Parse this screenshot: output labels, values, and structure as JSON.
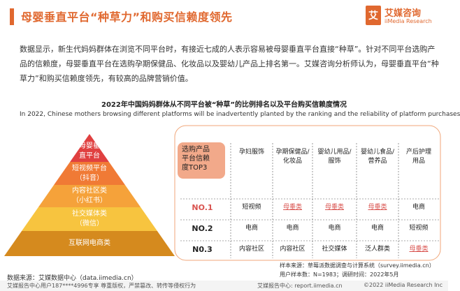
{
  "header": {
    "title": "母婴垂直平台“种草力”和购买信赖度领先",
    "logo_mark": "艾",
    "logo_cn": "艾媒咨询",
    "logo_en": "iiMedia Research",
    "accent_color": "#e0682f"
  },
  "intro": {
    "text": "数据显示，新生代妈妈群体在浏览不同平台时，有接近七成的人表示容易被母婴垂直平台直接“种草”。针对不同平台选购产品的信赖度，母婴垂直平台在选购孕期保健品、化妆品以及婴幼儿产品上排名第一。艾媒咨询分析师认为，母婴垂直平台“种草力”和购买信赖度领先，有较高的品牌营销价值。"
  },
  "chart_data": {
    "type": "table",
    "title": "2022年中国妈妈群体从不同平台被“种草”的比例排名以及平台购买信赖度情况",
    "subtitle": "In 2022, Chinese mothers browsing different platforms will be inadvertently planted by the ranking and the reliability of platform purchases",
    "pyramid": {
      "levels": [
        {
          "rank": 1,
          "label": "母婴垂直平台",
          "color": "#e04040"
        },
        {
          "rank": 2,
          "label": "短视频平台（抖音）",
          "color": "#f07a35"
        },
        {
          "rank": 3,
          "label": "内容社区类（小红书）",
          "color": "#f5a23a"
        },
        {
          "rank": 4,
          "label": "社交媒体类（微信）",
          "color": "#f7c43f"
        },
        {
          "rank": 5,
          "label": "互联网电商类",
          "color": "#d58a1e"
        }
      ]
    },
    "table": {
      "corner_label": "选购产品平台信赖度TOP3",
      "columns": [
        "孕妇服饰",
        "孕期保健品/化妆品",
        "婴幼儿用品/服饰",
        "婴幼儿食品/营养品",
        "产后护理用品"
      ],
      "rows": [
        {
          "rank": "NO.1",
          "values": [
            "短视频",
            "母垂类",
            "母垂类",
            "母垂类",
            "电商"
          ]
        },
        {
          "rank": "NO.2",
          "values": [
            "电商",
            "电商",
            "电商",
            "电商",
            "短视频"
          ]
        },
        {
          "rank": "N0.3",
          "values": [
            "内容社区",
            "内容社区",
            "社交媒体",
            "泛人群类",
            "母垂类"
          ]
        }
      ],
      "highlight_value": "母垂类",
      "highlight_color": "#d9534f"
    }
  },
  "footer": {
    "source": "数据来源：艾媒数据中心（data.iimedia.cn）",
    "sample_source": "样本来源：草莓派数据调查与计算系统（survey.iimedia.cn）",
    "sample_info": "用户样本数：N=1983；调研时间：2022年5月",
    "left_note": "艾媒报告中心用户187****4996专享 尊重版权，严禁篡改、转传等侵权行为",
    "center_note": "艾媒报告中心: report.iimedia.cn",
    "copyright": "©2022  iiMedia Research  Inc"
  }
}
